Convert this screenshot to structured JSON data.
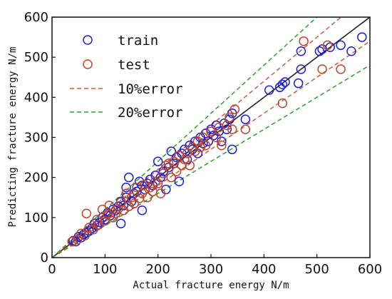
{
  "chart_data": {
    "type": "scatter",
    "xlabel": "Actual fracture energy N/m",
    "ylabel": "Predicting fracture energy N/m",
    "xlim": [
      0,
      600
    ],
    "ylim": [
      0,
      600
    ],
    "xticks": [
      0,
      100,
      200,
      300,
      400,
      500,
      600
    ],
    "yticks": [
      0,
      100,
      200,
      300,
      400,
      500,
      600
    ],
    "grid": false,
    "legend_position": "top-left",
    "reference_lines": [
      {
        "name": "",
        "slope": 1.0,
        "style": "solid",
        "color": "#222222"
      },
      {
        "name": "10%error",
        "slopes": [
          1.1,
          0.9
        ],
        "style": "dashed",
        "color": "#d05a3c"
      },
      {
        "name": "20%error",
        "slopes": [
          1.2,
          0.8
        ],
        "style": "dashed",
        "color": "#2ca02c"
      }
    ],
    "series": [
      {
        "name": "train",
        "color": "#1f1fd6",
        "marker": "circle-open",
        "points": [
          [
            40,
            42
          ],
          [
            45,
            40
          ],
          [
            50,
            52
          ],
          [
            55,
            50
          ],
          [
            60,
            58
          ],
          [
            65,
            62
          ],
          [
            70,
            66
          ],
          [
            75,
            73
          ],
          [
            80,
            85
          ],
          [
            85,
            80
          ],
          [
            90,
            88
          ],
          [
            95,
            100
          ],
          [
            100,
            95
          ],
          [
            105,
            112
          ],
          [
            110,
            105
          ],
          [
            115,
            120
          ],
          [
            120,
            118
          ],
          [
            125,
            128
          ],
          [
            130,
            85
          ],
          [
            130,
            140
          ],
          [
            135,
            130
          ],
          [
            140,
            150
          ],
          [
            140,
            175
          ],
          [
            145,
            200
          ],
          [
            150,
            140
          ],
          [
            155,
            160
          ],
          [
            160,
            165
          ],
          [
            165,
            190
          ],
          [
            170,
            118
          ],
          [
            170,
            180
          ],
          [
            175,
            170
          ],
          [
            180,
            185
          ],
          [
            185,
            195
          ],
          [
            190,
            180
          ],
          [
            195,
            205
          ],
          [
            200,
            240
          ],
          [
            205,
            200
          ],
          [
            210,
            215
          ],
          [
            215,
            170
          ],
          [
            220,
            225
          ],
          [
            225,
            265
          ],
          [
            230,
            235
          ],
          [
            235,
            250
          ],
          [
            240,
            190
          ],
          [
            245,
            260
          ],
          [
            250,
            270
          ],
          [
            255,
            245
          ],
          [
            260,
            280
          ],
          [
            265,
            270
          ],
          [
            270,
            290
          ],
          [
            275,
            260
          ],
          [
            280,
            300
          ],
          [
            285,
            285
          ],
          [
            290,
            310
          ],
          [
            295,
            290
          ],
          [
            300,
            320
          ],
          [
            305,
            305
          ],
          [
            310,
            330
          ],
          [
            315,
            315
          ],
          [
            320,
            290
          ],
          [
            325,
            335
          ],
          [
            330,
            320
          ],
          [
            335,
            345
          ],
          [
            340,
            360
          ],
          [
            340,
            270
          ],
          [
            365,
            345
          ],
          [
            410,
            418
          ],
          [
            430,
            425
          ],
          [
            435,
            432
          ],
          [
            440,
            438
          ],
          [
            465,
            435
          ],
          [
            470,
            470
          ],
          [
            470,
            515
          ],
          [
            505,
            515
          ],
          [
            510,
            520
          ],
          [
            525,
            525
          ],
          [
            545,
            530
          ],
          [
            565,
            515
          ],
          [
            585,
            550
          ]
        ]
      },
      {
        "name": "test",
        "color": "#c0452a",
        "marker": "circle-open",
        "points": [
          [
            38,
            40
          ],
          [
            48,
            45
          ],
          [
            55,
            60
          ],
          [
            62,
            55
          ],
          [
            65,
            110
          ],
          [
            70,
            75
          ],
          [
            78,
            70
          ],
          [
            85,
            95
          ],
          [
            88,
            82
          ],
          [
            95,
            120
          ],
          [
            100,
            92
          ],
          [
            105,
            108
          ],
          [
            108,
            130
          ],
          [
            115,
            100
          ],
          [
            120,
            110
          ],
          [
            125,
            122
          ],
          [
            130,
            138
          ],
          [
            135,
            118
          ],
          [
            140,
            160
          ],
          [
            145,
            128
          ],
          [
            150,
            150
          ],
          [
            155,
            135
          ],
          [
            160,
            175
          ],
          [
            165,
            148
          ],
          [
            170,
            160
          ],
          [
            175,
            182
          ],
          [
            180,
            150
          ],
          [
            185,
            175
          ],
          [
            190,
            165
          ],
          [
            195,
            190
          ],
          [
            200,
            185
          ],
          [
            205,
            160
          ],
          [
            210,
            210
          ],
          [
            215,
            230
          ],
          [
            220,
            235
          ],
          [
            225,
            200
          ],
          [
            230,
            240
          ],
          [
            235,
            215
          ],
          [
            240,
            255
          ],
          [
            245,
            230
          ],
          [
            250,
            245
          ],
          [
            255,
            260
          ],
          [
            260,
            230
          ],
          [
            265,
            275
          ],
          [
            270,
            265
          ],
          [
            275,
            290
          ],
          [
            280,
            275
          ],
          [
            285,
            300
          ],
          [
            290,
            280
          ],
          [
            300,
            315
          ],
          [
            310,
            300
          ],
          [
            315,
            325
          ],
          [
            320,
            280
          ],
          [
            330,
            330
          ],
          [
            335,
            350
          ],
          [
            340,
            320
          ],
          [
            345,
            370
          ],
          [
            365,
            320
          ],
          [
            435,
            385
          ],
          [
            475,
            540
          ],
          [
            510,
            470
          ],
          [
            520,
            530
          ],
          [
            545,
            470
          ]
        ]
      }
    ]
  }
}
